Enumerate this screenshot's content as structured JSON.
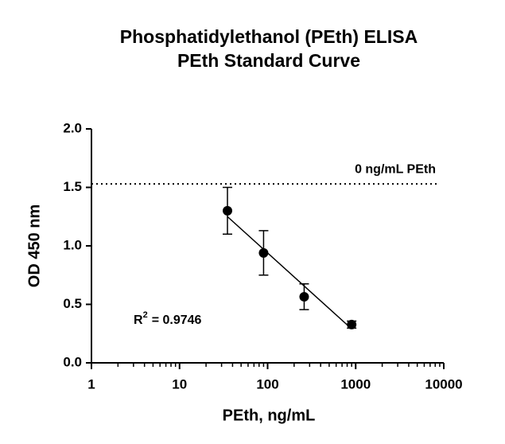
{
  "chart_data": {
    "type": "scatter",
    "title": "Phosphatidylethanol (PEth) ELISA",
    "subtitle": "PEth Standard Curve",
    "x_label": "PEth, ng/mL",
    "y_label": "OD 450 nm",
    "x_scale": "log",
    "xlim": [
      1,
      10000
    ],
    "xticks": [
      1,
      10,
      100,
      1000,
      10000
    ],
    "x_minor_ticks": true,
    "ylim": [
      0,
      2
    ],
    "yticks": [
      {
        "value": 0,
        "label": "0.0"
      },
      {
        "value": 0.5,
        "label": "0.5"
      },
      {
        "value": 1,
        "label": "1.0"
      },
      {
        "value": 1.5,
        "label": "1.5"
      },
      {
        "value": 2,
        "label": "2.0"
      }
    ],
    "color": "#000000",
    "series": [
      {
        "x": [
          35,
          90,
          260,
          900
        ],
        "values": [
          1.3,
          0.94,
          0.565,
          0.327
        ],
        "errors": [
          0.2,
          0.19,
          0.11,
          0.03
        ]
      }
    ],
    "fit": {
      "x": [
        35,
        900
      ],
      "values": [
        1.25,
        0.29
      ]
    },
    "reference": {
      "value": 1.53,
      "label": "0 ng/mL PEth"
    },
    "annotation": {
      "text": "R",
      "superscript": "2",
      "rest": "= 0.9746"
    }
  }
}
